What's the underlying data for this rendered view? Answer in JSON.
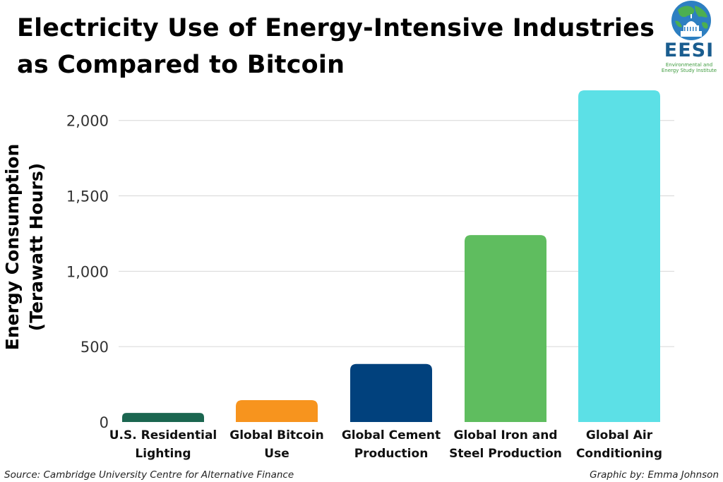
{
  "header": {
    "title_line1": "Electricity Use of Energy-Intensive Industries",
    "title_line2": "as Compared to Bitcoin"
  },
  "logo": {
    "acronym": "EESI",
    "name_line1": "Environmental and",
    "name_line2": "Energy Study Institute"
  },
  "footer": {
    "source": "Source: Cambridge University Centre for Alternative Finance",
    "credit": "Graphic by: Emma Johnson"
  },
  "chart_data": {
    "type": "bar",
    "title": "Electricity Use of Energy-Intensive Industries as Compared to Bitcoin",
    "ylabel_line1": "Energy Consumption",
    "ylabel_line2": "(Terawatt Hours)",
    "xlabel": "",
    "ylim": [
      0,
      2200
    ],
    "yticks": [
      0,
      500,
      1000,
      1500,
      2000
    ],
    "ytick_labels": [
      "0",
      "500",
      "1,000",
      "1,500",
      "2,000"
    ],
    "grid": true,
    "categories": [
      [
        "U.S. Residential",
        "Lighting"
      ],
      [
        "Global Bitcoin",
        "Use"
      ],
      [
        "Global Cement",
        "Production"
      ],
      [
        "Global Iron and",
        "Steel Production"
      ],
      [
        "Global Air",
        "Conditioning"
      ]
    ],
    "values": [
      60,
      145,
      385,
      1240,
      2200
    ],
    "colors": [
      "#1b6650",
      "#f7941e",
      "#01417d",
      "#5fbd5f",
      "#5ce0e6"
    ]
  }
}
